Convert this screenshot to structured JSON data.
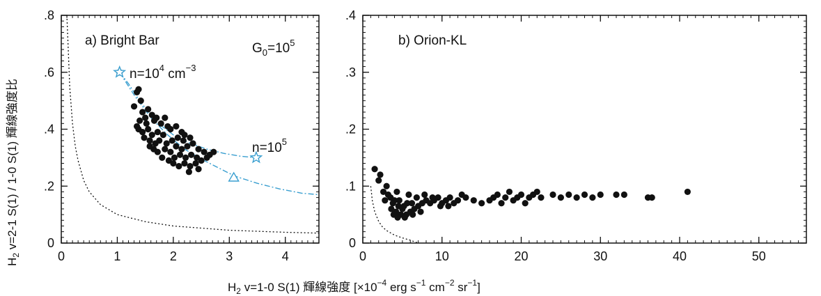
{
  "chart_data": [
    {
      "type": "scatter",
      "panel_label": "a) Bright Bar",
      "xlim": [
        0,
        4.6
      ],
      "ylim": [
        0,
        0.8
      ],
      "x_ticks": [
        0,
        1,
        2,
        3,
        4
      ],
      "y_ticks": [
        0,
        0.2,
        0.4,
        0.6,
        0.8
      ],
      "x_tick_labels": [
        "0",
        "1",
        "2",
        "3",
        "4"
      ],
      "y_tick_labels": [
        "0",
        ".2",
        ".4",
        ".6",
        ".8"
      ],
      "annotations": {
        "g0": {
          "base": "G",
          "sub": "0",
          "mid": "=10",
          "sup": "5"
        },
        "n_low": {
          "pre": "n=10",
          "sup": "4",
          "mid": " cm",
          "sup2": "−3"
        },
        "n_high": {
          "pre": "n=10",
          "sup": "5"
        }
      },
      "colors": {
        "points": "#111111",
        "model_curve": "#3a9fd0",
        "limit_curve": "#111111"
      },
      "points": [
        [
          1.04,
          0.6
        ],
        [
          1.35,
          0.53
        ],
        [
          1.38,
          0.54
        ],
        [
          1.42,
          0.5
        ],
        [
          1.3,
          0.48
        ],
        [
          1.45,
          0.46
        ],
        [
          1.55,
          0.47
        ],
        [
          1.5,
          0.44
        ],
        [
          1.62,
          0.45
        ],
        [
          1.7,
          0.44
        ],
        [
          1.4,
          0.43
        ],
        [
          1.52,
          0.42
        ],
        [
          1.66,
          0.43
        ],
        [
          1.78,
          0.42
        ],
        [
          1.85,
          0.44
        ],
        [
          1.9,
          0.41
        ],
        [
          1.38,
          0.4
        ],
        [
          1.45,
          0.39
        ],
        [
          1.55,
          0.4
        ],
        [
          1.62,
          0.38
        ],
        [
          1.72,
          0.39
        ],
        [
          1.82,
          0.38
        ],
        [
          1.95,
          0.4
        ],
        [
          2.05,
          0.41
        ],
        [
          2.15,
          0.39
        ],
        [
          1.48,
          0.37
        ],
        [
          1.58,
          0.36
        ],
        [
          1.68,
          0.35
        ],
        [
          1.75,
          0.36
        ],
        [
          1.88,
          0.35
        ],
        [
          1.98,
          0.36
        ],
        [
          2.08,
          0.37
        ],
        [
          2.2,
          0.38
        ],
        [
          2.3,
          0.37
        ],
        [
          1.65,
          0.33
        ],
        [
          1.72,
          0.32
        ],
        [
          1.85,
          0.33
        ],
        [
          1.95,
          0.32
        ],
        [
          2.05,
          0.34
        ],
        [
          2.15,
          0.33
        ],
        [
          2.25,
          0.34
        ],
        [
          2.35,
          0.35
        ],
        [
          2.45,
          0.33
        ],
        [
          2.55,
          0.32
        ],
        [
          2.65,
          0.31
        ],
        [
          2.72,
          0.32
        ],
        [
          1.8,
          0.3
        ],
        [
          1.92,
          0.29
        ],
        [
          2.02,
          0.3
        ],
        [
          2.12,
          0.31
        ],
        [
          2.22,
          0.3
        ],
        [
          2.32,
          0.31
        ],
        [
          2.42,
          0.3
        ],
        [
          2.5,
          0.29
        ],
        [
          2.6,
          0.3
        ],
        [
          2.0,
          0.28
        ],
        [
          2.1,
          0.27
        ],
        [
          2.2,
          0.28
        ],
        [
          2.3,
          0.27
        ],
        [
          2.4,
          0.28
        ],
        [
          2.28,
          0.25
        ],
        [
          2.45,
          0.26
        ],
        [
          1.58,
          0.34
        ],
        [
          2.18,
          0.36
        ],
        [
          1.35,
          0.41
        ]
      ],
      "model_curve_upper": {
        "x": [
          1.04,
          1.2,
          1.4,
          1.6,
          1.8,
          2.0,
          2.3,
          2.6,
          2.9,
          3.2,
          3.48
        ],
        "y": [
          0.6,
          0.56,
          0.5,
          0.45,
          0.41,
          0.38,
          0.35,
          0.33,
          0.315,
          0.305,
          0.3
        ]
      },
      "model_curve_lower": {
        "x": [
          1.04,
          1.3,
          1.6,
          1.9,
          2.2,
          2.5,
          2.8,
          3.1,
          3.5,
          3.9,
          4.3,
          4.6
        ],
        "y": [
          0.6,
          0.52,
          0.44,
          0.38,
          0.33,
          0.295,
          0.265,
          0.235,
          0.21,
          0.19,
          0.175,
          0.17
        ]
      },
      "model_markers": [
        {
          "x": 1.04,
          "y": 0.6,
          "shape": "star"
        },
        {
          "x": 3.48,
          "y": 0.3,
          "shape": "star"
        },
        {
          "x": 3.08,
          "y": 0.23,
          "shape": "triangle"
        }
      ],
      "limit_curve": {
        "x": [
          0.1,
          0.12,
          0.15,
          0.2,
          0.25,
          0.3,
          0.4,
          0.5,
          0.7,
          1.0,
          1.5,
          2.0,
          3.0,
          4.0,
          4.6
        ],
        "y": [
          0.8,
          0.7,
          0.55,
          0.42,
          0.34,
          0.29,
          0.22,
          0.18,
          0.135,
          0.1,
          0.075,
          0.06,
          0.045,
          0.038,
          0.035
        ]
      }
    },
    {
      "type": "scatter",
      "panel_label": "b) Orion-KL",
      "xlim": [
        0,
        56
      ],
      "ylim": [
        0,
        0.4
      ],
      "x_ticks": [
        0,
        10,
        20,
        30,
        40,
        50
      ],
      "y_ticks": [
        0,
        0.1,
        0.2,
        0.3,
        0.4
      ],
      "x_tick_labels": [
        "0",
        "10",
        "20",
        "30",
        "40",
        "50"
      ],
      "y_tick_labels": [
        "0",
        ".1",
        ".2",
        ".3",
        ".4"
      ],
      "colors": {
        "points": "#111111",
        "limit_curve": "#111111"
      },
      "points": [
        [
          1.5,
          0.13
        ],
        [
          2.2,
          0.12
        ],
        [
          2.0,
          0.11
        ],
        [
          3.0,
          0.1
        ],
        [
          2.6,
          0.09
        ],
        [
          3.2,
          0.085
        ],
        [
          3.5,
          0.08
        ],
        [
          4.0,
          0.075
        ],
        [
          3.8,
          0.07
        ],
        [
          4.5,
          0.065
        ],
        [
          5.0,
          0.06
        ],
        [
          3.6,
          0.06
        ],
        [
          4.2,
          0.055
        ],
        [
          4.8,
          0.05
        ],
        [
          5.5,
          0.05
        ],
        [
          6.0,
          0.055
        ],
        [
          6.5,
          0.06
        ],
        [
          7.0,
          0.065
        ],
        [
          5.2,
          0.065
        ],
        [
          6.2,
          0.07
        ],
        [
          7.5,
          0.07
        ],
        [
          8.0,
          0.075
        ],
        [
          8.5,
          0.07
        ],
        [
          9.0,
          0.075
        ],
        [
          9.5,
          0.08
        ],
        [
          10.0,
          0.07
        ],
        [
          10.5,
          0.075
        ],
        [
          11.0,
          0.08
        ],
        [
          11.5,
          0.07
        ],
        [
          12.0,
          0.075
        ],
        [
          12.5,
          0.085
        ],
        [
          13.0,
          0.08
        ],
        [
          14.0,
          0.075
        ],
        [
          15.0,
          0.07
        ],
        [
          16.0,
          0.075
        ],
        [
          16.5,
          0.08
        ],
        [
          17.0,
          0.085
        ],
        [
          17.5,
          0.07
        ],
        [
          18.0,
          0.08
        ],
        [
          18.5,
          0.09
        ],
        [
          19.0,
          0.075
        ],
        [
          19.5,
          0.08
        ],
        [
          20.0,
          0.085
        ],
        [
          20.5,
          0.07
        ],
        [
          21.0,
          0.08
        ],
        [
          21.5,
          0.085
        ],
        [
          22.0,
          0.09
        ],
        [
          22.5,
          0.08
        ],
        [
          24.0,
          0.085
        ],
        [
          25.0,
          0.08
        ],
        [
          26.0,
          0.085
        ],
        [
          27.0,
          0.08
        ],
        [
          28.0,
          0.085
        ],
        [
          29.0,
          0.08
        ],
        [
          30.0,
          0.085
        ],
        [
          32.0,
          0.085
        ],
        [
          33.0,
          0.085
        ],
        [
          36.0,
          0.08
        ],
        [
          36.5,
          0.08
        ],
        [
          41.0,
          0.09
        ],
        [
          4.3,
          0.09
        ],
        [
          5.8,
          0.085
        ],
        [
          6.8,
          0.08
        ],
        [
          7.8,
          0.085
        ],
        [
          8.8,
          0.08
        ],
        [
          4.6,
          0.075
        ],
        [
          5.6,
          0.07
        ],
        [
          3.9,
          0.05
        ],
        [
          4.4,
          0.045
        ],
        [
          5.3,
          0.045
        ],
        [
          6.3,
          0.05
        ],
        [
          7.3,
          0.055
        ],
        [
          9.8,
          0.065
        ],
        [
          10.8,
          0.065
        ],
        [
          2.8,
          0.075
        ]
      ],
      "limit_curve": {
        "x": [
          1.0,
          1.2,
          1.5,
          2.0,
          2.5,
          3.0,
          4.0,
          5.0,
          6.0,
          7.0
        ],
        "y": [
          0.1,
          0.075,
          0.055,
          0.038,
          0.028,
          0.022,
          0.014,
          0.009,
          0.005,
          0.0
        ]
      }
    }
  ],
  "axes_titles": {
    "y": {
      "pre": "H",
      "sub": "2",
      "rest": " v=2-1 S(1) / 1-0 S(1) 輝線強度比"
    },
    "x": {
      "pre": "H",
      "sub": "2",
      "rest": " v=1-0 S(1) 輝線強度 [×10",
      "e1": "−4",
      "t2": "  erg s",
      "e2": "−1",
      "t3": "  cm",
      "e3": "−2",
      "t4": "  sr",
      "e4": "−1",
      "t5": "]"
    }
  }
}
